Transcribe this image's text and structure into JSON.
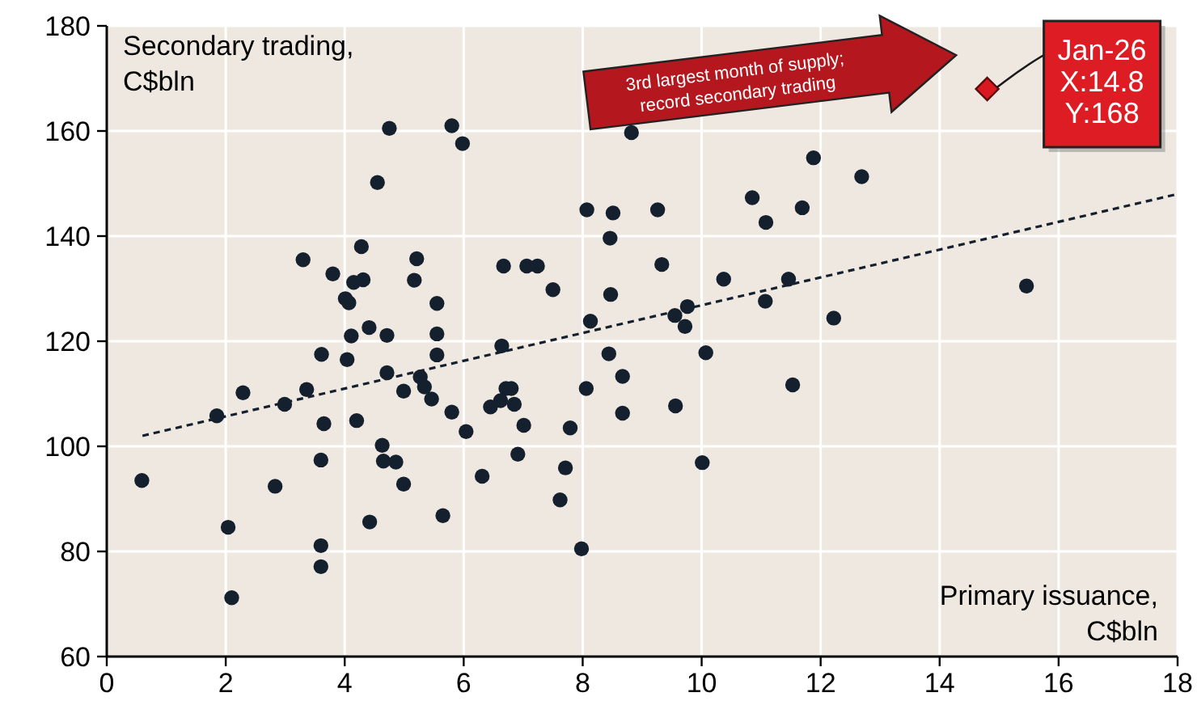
{
  "chart_data": {
    "type": "scatter",
    "xlabel": "Primary issuance, C$bln",
    "ylabel": "Secondary trading, C$bln",
    "xlim": [
      0,
      18
    ],
    "ylim": [
      60,
      180
    ],
    "xticks": [
      0,
      2,
      4,
      6,
      8,
      10,
      12,
      14,
      16,
      18
    ],
    "yticks": [
      60,
      80,
      100,
      120,
      140,
      160,
      180
    ],
    "grid": true,
    "series": [
      {
        "color": "#14202e",
        "marker": "circle",
        "x": [
          0.59,
          1.85,
          2.29,
          2.04,
          2.1,
          2.83,
          2.99,
          3.3,
          3.36,
          3.61,
          3.65,
          3.6,
          3.6,
          3.6,
          3.8,
          4.01,
          4.07,
          4.04,
          4.11,
          4.15,
          4.31,
          4.28,
          4.2,
          4.41,
          4.42,
          4.55,
          4.63,
          4.65,
          4.86,
          4.71,
          4.71,
          4.75,
          4.99,
          4.99,
          5.17,
          5.21,
          5.27,
          5.34,
          5.46,
          5.55,
          5.55,
          5.55,
          5.65,
          5.8,
          5.8,
          5.98,
          6.04,
          8.82,
          8.07,
          8.51,
          9.26,
          8.46,
          10.85,
          11.08,
          11.69,
          11.88,
          6.67,
          7.06,
          7.24,
          7.5,
          8.47,
          9.33,
          8.13,
          10.37,
          11.46,
          11.07,
          9.55,
          9.76,
          9.72,
          6.64,
          8.44,
          10.07,
          8.67,
          11.53,
          8.06,
          6.71,
          6.8,
          6.45,
          6.62,
          6.85,
          7.01,
          7.79,
          8.67,
          9.56,
          6.31,
          6.91,
          7.71,
          7.62,
          7.98,
          10.01,
          12.69,
          12.22,
          15.46
        ],
        "values": [
          93.5,
          105.8,
          110.2,
          84.6,
          71.2,
          92.4,
          108,
          135.5,
          110.8,
          117.5,
          104.3,
          97.4,
          81.1,
          77.1,
          132.8,
          128.1,
          127.3,
          116.5,
          121,
          131.2,
          131.7,
          138,
          104.9,
          122.6,
          85.6,
          150.2,
          100.2,
          97.2,
          97,
          121.1,
          114,
          160.5,
          110.5,
          92.8,
          131.6,
          135.7,
          113.2,
          111.3,
          109,
          127.2,
          121.4,
          117.4,
          86.8,
          106.5,
          161,
          157.6,
          102.8,
          159.7,
          145,
          144.4,
          145,
          139.6,
          147.3,
          142.6,
          145.4,
          154.9,
          134.3,
          134.3,
          134.3,
          129.8,
          128.9,
          134.6,
          123.8,
          131.8,
          131.8,
          127.6,
          124.9,
          126.6,
          122.8,
          119.1,
          117.6,
          117.8,
          113.3,
          111.7,
          111,
          111,
          111,
          107.5,
          108.7,
          108,
          104,
          103.5,
          106.3,
          107.7,
          94.3,
          98.5,
          95.9,
          89.8,
          80.5,
          96.9,
          151.3,
          124.4,
          130.5
        ]
      },
      {
        "type": "line",
        "color": "#14202e",
        "marker": "none",
        "line_style": "dashed",
        "x": [
          0.6,
          18
        ],
        "values": [
          102,
          148
        ]
      },
      {
        "type": "scatter",
        "color": "#d9181f",
        "marker": "diamond",
        "x": [
          14.8
        ],
        "values": [
          168
        ]
      }
    ],
    "annotations": [
      "3rd largest month of supply; record secondary trading",
      {
        "text": "Jan-26\nX:14.8\nY:168",
        "x": 14.8,
        "y": 168
      }
    ]
  }
}
